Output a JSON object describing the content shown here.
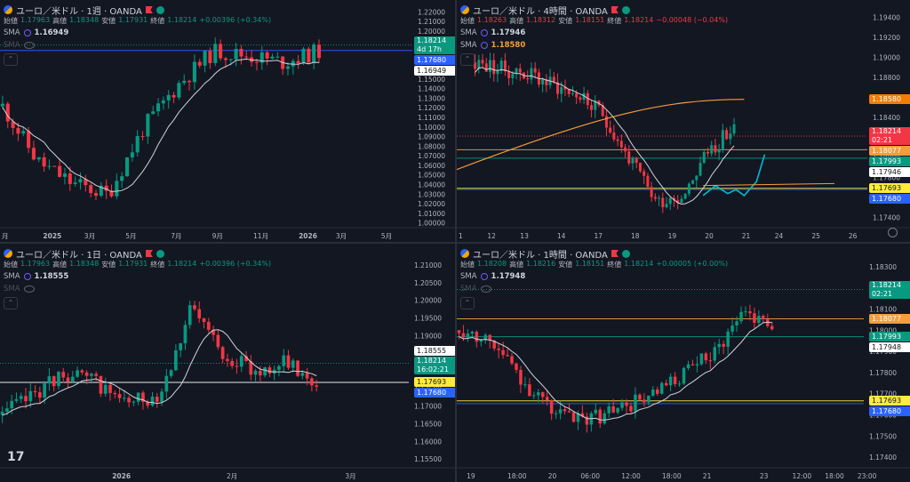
{
  "panels": [
    {
      "id": "weekly",
      "title": "ユーロ／米ドル · 1週 · OANDA",
      "ohlc": {
        "open_label": "始値",
        "open": "1.17963",
        "high_label": "高値",
        "high": "1.18348",
        "low_label": "安値",
        "low": "1.17931",
        "close_label": "終値",
        "close": "1.18214",
        "change": "+0.00396 (+0.34%)",
        "change_dir": "up"
      },
      "smas": [
        {
          "label": "SMA",
          "value": "1.16949",
          "style": "white"
        },
        {
          "label": "SMA",
          "value": "",
          "style": "dim"
        }
      ],
      "y_ticks": [
        "1.22000",
        "1.21000",
        "1.20000",
        "1.19000",
        "1.18000",
        "1.17000",
        "1.16000",
        "1.15000",
        "1.14000",
        "1.13000",
        "1.12000",
        "1.11000",
        "1.10000",
        "1.09000",
        "1.08000",
        "1.07000",
        "1.06000",
        "1.05000",
        "1.04000",
        "1.03000",
        "1.02000",
        "1.01000",
        "1.00000"
      ],
      "y_range": [
        1.0,
        1.22
      ],
      "x_labels": [
        "月",
        "2025",
        "3月",
        "5月",
        "7月",
        "9月",
        "11月",
        "2026",
        "3月",
        "5月"
      ],
      "x_label_pos": [
        0.0,
        0.1,
        0.2,
        0.3,
        0.41,
        0.51,
        0.61,
        0.72,
        0.81,
        0.92
      ],
      "price_tags": [
        {
          "text": "1.18214",
          "sub": "4d 17h",
          "value": 1.18214,
          "color": "#089981"
        },
        {
          "text": "1.17680",
          "value": 1.1768,
          "color": "#2962ff"
        },
        {
          "text": "1.16949",
          "value": 1.16949,
          "color": "#ffffff",
          "dark": true
        }
      ],
      "hlines": [
        {
          "value": 1.1768,
          "color": "#2962ff",
          "style": "solid"
        },
        {
          "value": 1.18214,
          "color": "#089981",
          "style": "dotted"
        }
      ]
    },
    {
      "id": "h4",
      "title": "ユーロ／米ドル · 4時間 · OANDA",
      "ohlc": {
        "open_label": "始値",
        "open": "1.18263",
        "high_label": "高値",
        "high": "1.18312",
        "low_label": "安値",
        "low": "1.18151",
        "close_label": "終値",
        "close": "1.18214",
        "change": "−0.00048 (−0.04%)",
        "change_dir": "down"
      },
      "smas": [
        {
          "label": "SMA",
          "value": "1.17946",
          "style": "white"
        },
        {
          "label": "SMA",
          "value": "1.18580",
          "style": "orange"
        }
      ],
      "y_ticks": [
        "1.19400",
        "1.19200",
        "1.19000",
        "1.18800",
        "1.18600",
        "1.18400",
        "1.18200",
        "1.18000",
        "1.17800",
        "1.17600",
        "1.17400"
      ],
      "y_range": [
        1.173,
        1.195
      ],
      "x_labels": [
        "1",
        "12",
        "13",
        "14",
        "17",
        "18",
        "19",
        "20",
        "21",
        "24",
        "25",
        "26"
      ],
      "x_label_pos": [
        0.0,
        0.07,
        0.15,
        0.24,
        0.33,
        0.42,
        0.51,
        0.6,
        0.69,
        0.77,
        0.86,
        0.95
      ],
      "price_tags": [
        {
          "text": "1.18580",
          "value": 1.1858,
          "color": "#f57c00"
        },
        {
          "text": "1.18214",
          "sub": "02:21",
          "value": 1.18214,
          "color": "#f23645"
        },
        {
          "text": "1.18077",
          "value": 1.18077,
          "color": "#f59d3b"
        },
        {
          "text": "1.17993",
          "value": 1.17993,
          "color": "#089981"
        },
        {
          "text": "1.17946",
          "value": 1.17946,
          "color": "#ffffff",
          "dark": true
        },
        {
          "text": "1.17693",
          "value": 1.17693,
          "color": "#ffeb3b",
          "dark": true
        },
        {
          "text": "1.17680",
          "value": 1.1768,
          "color": "#2962ff"
        }
      ],
      "hlines": [
        {
          "value": 1.18077,
          "color": "#f59d3b",
          "style": "solid"
        },
        {
          "value": 1.17993,
          "color": "#089981",
          "style": "solid"
        },
        {
          "value": 1.1768,
          "color": "#2962ff",
          "style": "solid"
        },
        {
          "value": 1.17693,
          "color": "#ffeb3b",
          "style": "solid"
        },
        {
          "value": 1.18214,
          "color": "#f23645",
          "style": "dotted"
        }
      ]
    },
    {
      "id": "daily",
      "title": "ユーロ／米ドル · 1日 · OANDA",
      "ohlc": {
        "open_label": "始値",
        "open": "1.17963",
        "high_label": "高値",
        "high": "1.18348",
        "low_label": "安値",
        "low": "1.17931",
        "close_label": "終値",
        "close": "1.18214",
        "change": "+0.00396 (+0.34%)",
        "change_dir": "up"
      },
      "smas": [
        {
          "label": "SMA",
          "value": "1.18555",
          "style": "white"
        },
        {
          "label": "SMA",
          "value": "",
          "style": "dim"
        }
      ],
      "y_ticks": [
        "1.21000",
        "1.20500",
        "1.20000",
        "1.19500",
        "1.19000",
        "1.18500",
        "1.18000",
        "1.17500",
        "1.17000",
        "1.16500",
        "1.16000",
        "1.15500"
      ],
      "y_range": [
        1.153,
        1.212
      ],
      "x_labels": [
        "2026",
        "2月",
        "3月"
      ],
      "x_label_pos": [
        0.27,
        0.55,
        0.84
      ],
      "price_tags": [
        {
          "text": "1.18555",
          "value": 1.18555,
          "color": "#ffffff",
          "dark": true
        },
        {
          "text": "1.18214",
          "sub": "16:02:21",
          "value": 1.18214,
          "color": "#089981"
        },
        {
          "text": "1.17693",
          "value": 1.17693,
          "color": "#ffeb3b",
          "dark": true
        },
        {
          "text": "1.17680",
          "value": 1.1768,
          "color": "#2962ff"
        }
      ],
      "hlines": [
        {
          "value": 1.1768,
          "color": "#ffffff",
          "style": "solid"
        },
        {
          "value": 1.18214,
          "color": "#089981",
          "style": "dotted"
        }
      ]
    },
    {
      "id": "h1",
      "title": "ユーロ／米ドル · 1時間 · OANDA",
      "ohlc": {
        "open_label": "始値",
        "open": "1.18208",
        "high_label": "高値",
        "high": "1.18216",
        "low_label": "安値",
        "low": "1.18151",
        "close_label": "終値",
        "close": "1.18214",
        "change": "+0.00005 (+0.00%)",
        "change_dir": "up"
      },
      "smas": [
        {
          "label": "SMA",
          "value": "1.17948",
          "style": "white"
        },
        {
          "label": "SMA",
          "value": "",
          "style": "dim"
        }
      ],
      "y_ticks": [
        "1.18300",
        "1.18200",
        "1.18100",
        "1.18000",
        "1.17900",
        "1.17800",
        "1.17700",
        "1.17600",
        "1.17500",
        "1.17400"
      ],
      "y_range": [
        1.1738,
        1.1837
      ],
      "x_labels": [
        "19",
        "18:00",
        "20",
        "06:00",
        "12:00",
        "18:00",
        "21",
        "23",
        "12:00",
        "18:00",
        "23:00"
      ],
      "x_label_pos": [
        0.02,
        0.12,
        0.22,
        0.3,
        0.4,
        0.5,
        0.6,
        0.74,
        0.82,
        0.9,
        0.98
      ],
      "price_tags": [
        {
          "text": "1.18214",
          "sub": "02:21",
          "value": 1.18214,
          "color": "#089981"
        },
        {
          "text": "1.18077",
          "value": 1.18077,
          "color": "#f59d3b"
        },
        {
          "text": "1.17993",
          "value": 1.17993,
          "color": "#089981"
        },
        {
          "text": "1.17948",
          "value": 1.17948,
          "color": "#ffffff",
          "dark": true
        },
        {
          "text": "1.17693",
          "value": 1.17693,
          "color": "#ffeb3b",
          "dark": true
        },
        {
          "text": "1.17680",
          "value": 1.1768,
          "color": "#2962ff"
        }
      ],
      "hlines": [
        {
          "value": 1.18077,
          "color": "#f59d3b",
          "style": "solid"
        },
        {
          "value": 1.17993,
          "color": "#089981",
          "style": "solid"
        },
        {
          "value": 1.17693,
          "color": "#ffeb3b",
          "style": "solid"
        },
        {
          "value": 1.1768,
          "color": "#2962ff",
          "style": "solid"
        },
        {
          "value": 1.18214,
          "color": "#089981",
          "style": "dotted"
        }
      ]
    }
  ],
  "logo": "17",
  "colors": {
    "up": "#089981",
    "down": "#f23645",
    "bg": "#131722",
    "grid": "#1e222d",
    "axis_text": "#b2b5be"
  }
}
